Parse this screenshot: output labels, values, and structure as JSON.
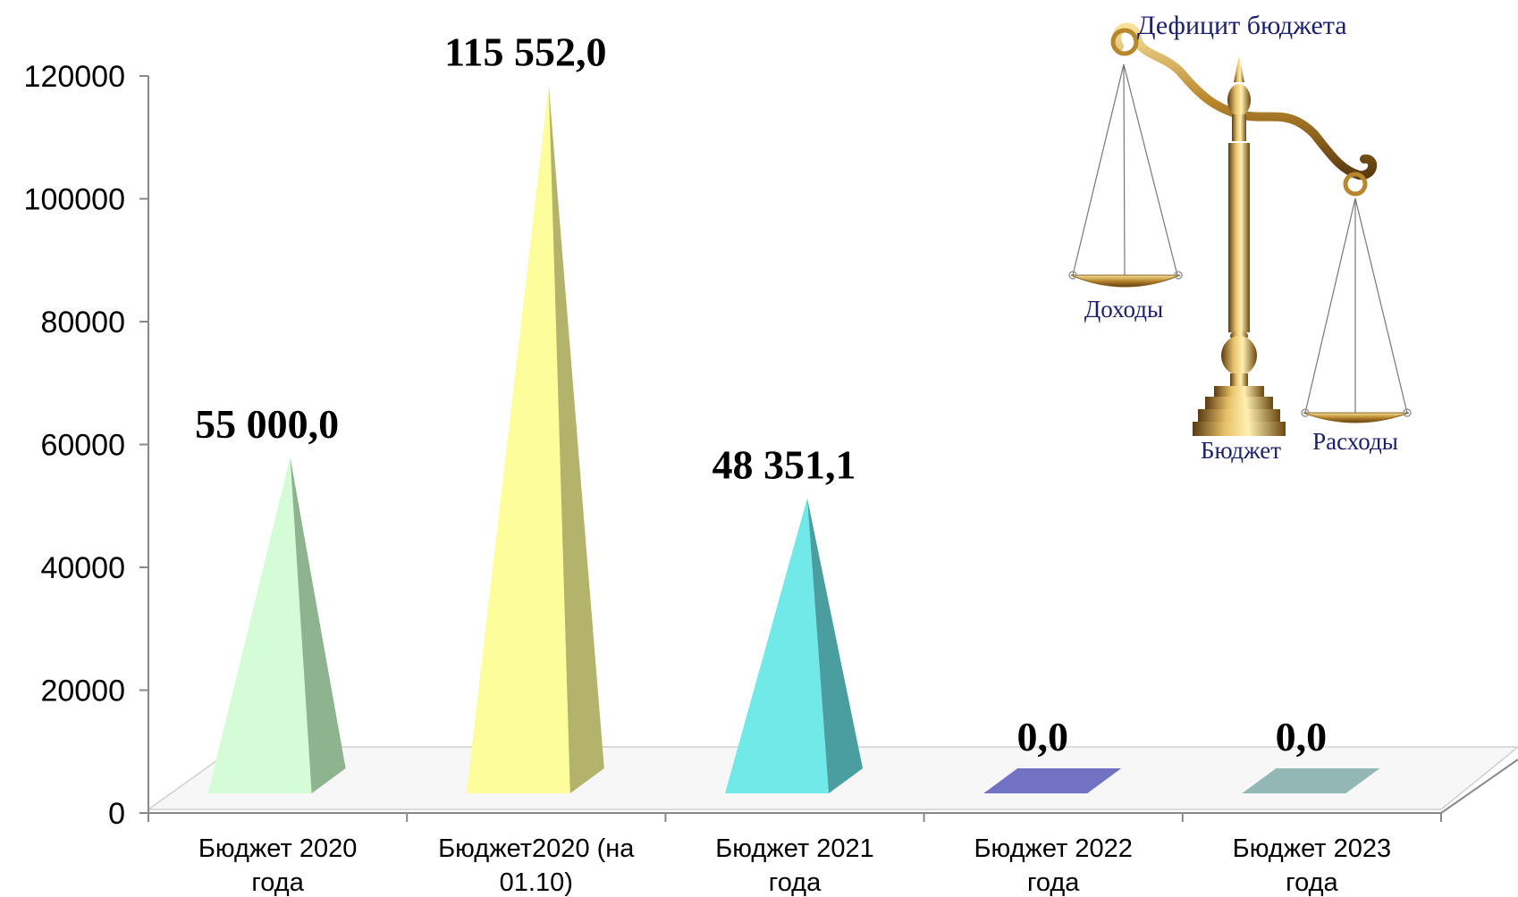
{
  "chart_data": {
    "type": "bar",
    "categories": [
      [
        "Бюджет 2020",
        "года"
      ],
      [
        "Бюджет2020 (на",
        "01.10)"
      ],
      [
        "Бюджет 2021",
        "года"
      ],
      [
        "Бюджет 2022",
        "года"
      ],
      [
        "Бюджет 2023",
        "года"
      ]
    ],
    "values": [
      55000.0,
      115552.0,
      48351.1,
      0.0,
      0.0
    ],
    "value_labels": [
      "55 000,0",
      "115 552,0",
      "48 351,1",
      "0,0",
      "0,0"
    ],
    "yticks": [
      "0",
      "20000",
      "40000",
      "60000",
      "80000",
      "100000",
      "120000"
    ],
    "ylim": [
      0,
      120000
    ],
    "bar_shape": "pyramid",
    "colors": [
      {
        "front": "#d4fcd7",
        "side": "#8db38f"
      },
      {
        "front": "#fdfd9a",
        "side": "#b3b36b"
      },
      {
        "front": "#72e9e9",
        "side": "#4a9e9f"
      },
      {
        "front": "#7272c3",
        "side": "#5656a0"
      },
      {
        "front": "#93b7b5",
        "side": "#6f9694"
      }
    ],
    "grid": false
  },
  "illustration": {
    "icon": "scales-of-justice-icon",
    "title": "Дефицит бюджета",
    "left_pan": "Доходы",
    "base": "Бюджет",
    "right_pan": "Расходы"
  }
}
